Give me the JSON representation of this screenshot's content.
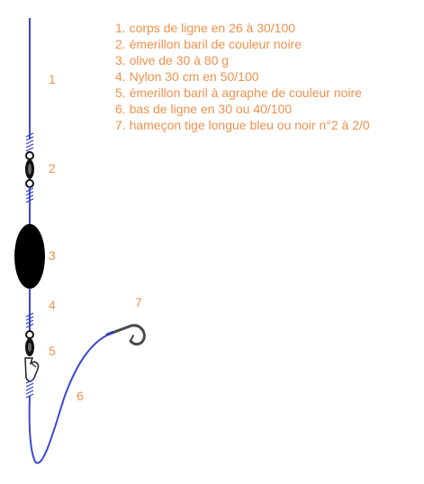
{
  "colors": {
    "text": "#f0914d",
    "line": "#3b48d8",
    "olive": "#000000",
    "swivel": "#111111",
    "whipping": "#2b39c9",
    "hook": "#4a4a4a"
  },
  "legend": [
    "1. corps de ligne en 26 à 30/100",
    "2. émerillon baril de couleur noire",
    "3. olive de 30 à 80 g",
    "4. Nylon 30 cm en 50/100",
    "5. émerillon baril à agraphe de couleur noire",
    "6. bas de ligne en 30 ou 40/100",
    "7. hameçon tige longue bleu ou noir n°2 à 2/0"
  ],
  "markers": [
    "1",
    "2",
    "3",
    "4",
    "5",
    "6",
    "7"
  ],
  "icons": {
    "swivel_top": "barrel-swivel-icon",
    "olive": "olive-sinker-icon",
    "swivel_snap": "snap-swivel-icon",
    "hook": "fish-hook-icon"
  }
}
